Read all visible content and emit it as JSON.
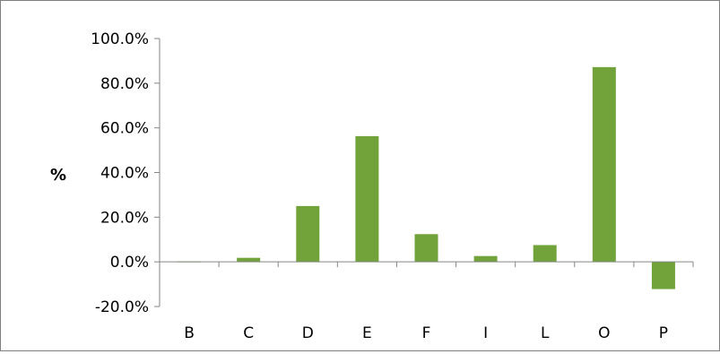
{
  "chart_data": {
    "type": "bar",
    "title": "",
    "xlabel": "",
    "ylabel": "%",
    "categories": [
      "B",
      "C",
      "D",
      "E",
      "F",
      "I",
      "L",
      "O",
      "P"
    ],
    "values": [
      0.2,
      1.8,
      25.0,
      56.3,
      12.4,
      2.6,
      7.5,
      87.2,
      -12.2
    ],
    "ylim": [
      -20,
      100
    ],
    "yticks": [
      "-20.0%",
      "0.0%",
      "20.0%",
      "40.0%",
      "60.0%",
      "80.0%",
      "100.0%"
    ],
    "grid": false,
    "legend": "none",
    "bar_color": "#71a33a",
    "axis_color": "#868686"
  }
}
